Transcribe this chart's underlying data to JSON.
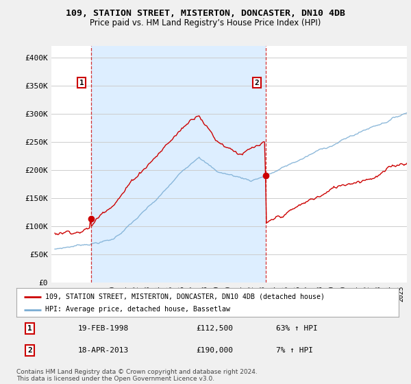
{
  "title": "109, STATION STREET, MISTERTON, DONCASTER, DN10 4DB",
  "subtitle": "Price paid vs. HM Land Registry’s House Price Index (HPI)",
  "xlim": [
    1994.7,
    2025.5
  ],
  "ylim": [
    0,
    420000
  ],
  "yticks": [
    0,
    50000,
    100000,
    150000,
    200000,
    250000,
    300000,
    350000,
    400000
  ],
  "ytick_labels": [
    "£0",
    "£50K",
    "£100K",
    "£150K",
    "£200K",
    "£250K",
    "£300K",
    "£350K",
    "£400K"
  ],
  "sale1_year": 1998.12,
  "sale1_price": 112500,
  "sale1_label": "19-FEB-1998",
  "sale1_amount": "£112,500",
  "sale1_hpi": "63% ↑ HPI",
  "sale2_year": 2013.29,
  "sale2_price": 190000,
  "sale2_label": "18-APR-2013",
  "sale2_amount": "£190,000",
  "sale2_hpi": "7% ↑ HPI",
  "legend_line1": "109, STATION STREET, MISTERTON, DONCASTER, DN10 4DB (detached house)",
  "legend_line2": "HPI: Average price, detached house, Bassetlaw",
  "line_color": "#cc0000",
  "hpi_color": "#7aadd4",
  "shade_color": "#ddeeff",
  "footer": "Contains HM Land Registry data © Crown copyright and database right 2024.\nThis data is licensed under the Open Government Licence v3.0.",
  "bg_color": "#f0f0f0",
  "plot_bg": "#ffffff",
  "grid_color": "#cccccc"
}
